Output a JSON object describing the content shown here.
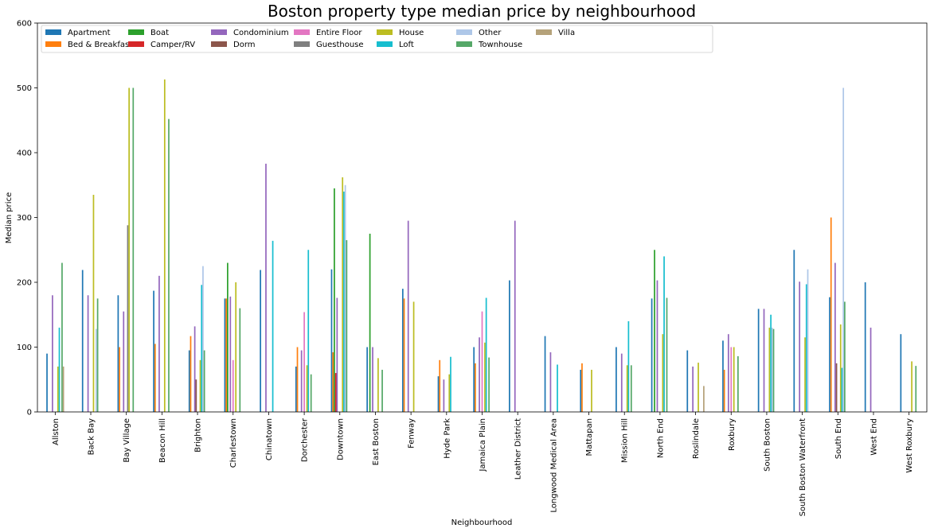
{
  "chart_data": {
    "type": "bar",
    "title": "Boston property type median price by neighbourhood",
    "xlabel": "Neighbourhood",
    "ylabel": "Median price",
    "ylim": [
      0,
      600
    ],
    "yticks": [
      0,
      100,
      200,
      300,
      400,
      500,
      600
    ],
    "grid": false,
    "legend_position": "top-left",
    "legend_columns": 8,
    "categories": [
      "Allston",
      "Back Bay",
      "Bay Village",
      "Beacon Hill",
      "Brighton",
      "Charlestown",
      "Chinatown",
      "Dorchester",
      "Downtown",
      "East Boston",
      "Fenway",
      "Hyde Park",
      "Jamaica Plain",
      "Leather District",
      "Longwood Medical Area",
      "Mattapan",
      "Mission Hill",
      "North End",
      "Roslindale",
      "Roxbury",
      "South Boston",
      "South Boston Waterfront",
      "South End",
      "West End",
      "West Roxbury"
    ],
    "series": [
      {
        "name": "Apartment",
        "color": "#1f77b4",
        "values": [
          90,
          219,
          180,
          187,
          95,
          175,
          219,
          70,
          220,
          100,
          190,
          55,
          100,
          203,
          117,
          65,
          100,
          175,
          95,
          110,
          159,
          250,
          177,
          200,
          120
        ]
      },
      {
        "name": "Bed & Breakfast",
        "color": "#ff7f0e",
        "values": [
          null,
          null,
          100,
          105,
          117,
          175,
          null,
          100,
          92,
          null,
          175,
          80,
          75,
          null,
          null,
          75,
          null,
          null,
          null,
          65,
          null,
          null,
          300,
          null,
          null
        ]
      },
      {
        "name": "Boat",
        "color": "#2ca02c",
        "values": [
          null,
          null,
          null,
          null,
          null,
          230,
          null,
          null,
          345,
          275,
          null,
          null,
          null,
          null,
          null,
          null,
          null,
          250,
          null,
          null,
          null,
          null,
          null,
          null,
          null
        ]
      },
      {
        "name": "Camper/RV",
        "color": "#d62728",
        "values": [
          null,
          null,
          null,
          null,
          null,
          null,
          null,
          null,
          60,
          null,
          null,
          null,
          null,
          null,
          null,
          null,
          null,
          null,
          null,
          null,
          null,
          null,
          null,
          null,
          null
        ]
      },
      {
        "name": "Condominium",
        "color": "#9467bd",
        "values": [
          180,
          180,
          155,
          210,
          132,
          178,
          383,
          95,
          176,
          100,
          295,
          50,
          115,
          295,
          92,
          null,
          90,
          203,
          70,
          120,
          159,
          201,
          230,
          130,
          null
        ]
      },
      {
        "name": "Dorm",
        "color": "#8c564b",
        "values": [
          null,
          null,
          null,
          null,
          50,
          null,
          null,
          null,
          null,
          null,
          null,
          null,
          null,
          null,
          null,
          null,
          null,
          null,
          null,
          null,
          null,
          null,
          75,
          null,
          null
        ]
      },
      {
        "name": "Entire Floor",
        "color": "#e377c2",
        "values": [
          null,
          null,
          null,
          null,
          null,
          80,
          null,
          154,
          null,
          null,
          null,
          null,
          155,
          null,
          null,
          null,
          null,
          null,
          null,
          100,
          null,
          null,
          null,
          null,
          null
        ]
      },
      {
        "name": "Guesthouse",
        "color": "#7f7f7f",
        "values": [
          null,
          null,
          288,
          null,
          null,
          null,
          null,
          null,
          null,
          null,
          null,
          null,
          null,
          null,
          null,
          null,
          null,
          null,
          null,
          null,
          null,
          null,
          null,
          null,
          null
        ]
      },
      {
        "name": "House",
        "color": "#bcbd22",
        "values": [
          70,
          335,
          500,
          513,
          80,
          200,
          null,
          72,
          362,
          83,
          170,
          58,
          107,
          null,
          null,
          65,
          72,
          120,
          76,
          100,
          130,
          115,
          135,
          null,
          78
        ]
      },
      {
        "name": "Loft",
        "color": "#17becf",
        "values": [
          130,
          null,
          null,
          null,
          196,
          null,
          264,
          250,
          340,
          null,
          null,
          85,
          176,
          null,
          73,
          null,
          140,
          240,
          null,
          null,
          150,
          197,
          68,
          null,
          null
        ]
      },
      {
        "name": "Other",
        "color": "#aec7e8",
        "values": [
          null,
          128,
          null,
          null,
          225,
          null,
          null,
          null,
          350,
          null,
          null,
          null,
          null,
          null,
          null,
          null,
          null,
          null,
          null,
          null,
          130,
          220,
          500,
          null,
          null
        ]
      },
      {
        "name": "Townhouse",
        "color": "#55a868",
        "values": [
          230,
          175,
          500,
          452,
          95,
          160,
          null,
          58,
          265,
          65,
          null,
          null,
          84,
          null,
          null,
          null,
          72,
          176,
          null,
          86,
          128,
          null,
          170,
          null,
          71
        ]
      },
      {
        "name": "Villa",
        "color": "#b5a27a",
        "values": [
          70,
          null,
          null,
          null,
          null,
          null,
          null,
          null,
          null,
          null,
          null,
          null,
          null,
          null,
          null,
          null,
          null,
          null,
          40,
          null,
          null,
          null,
          null,
          null,
          null
        ]
      }
    ]
  }
}
